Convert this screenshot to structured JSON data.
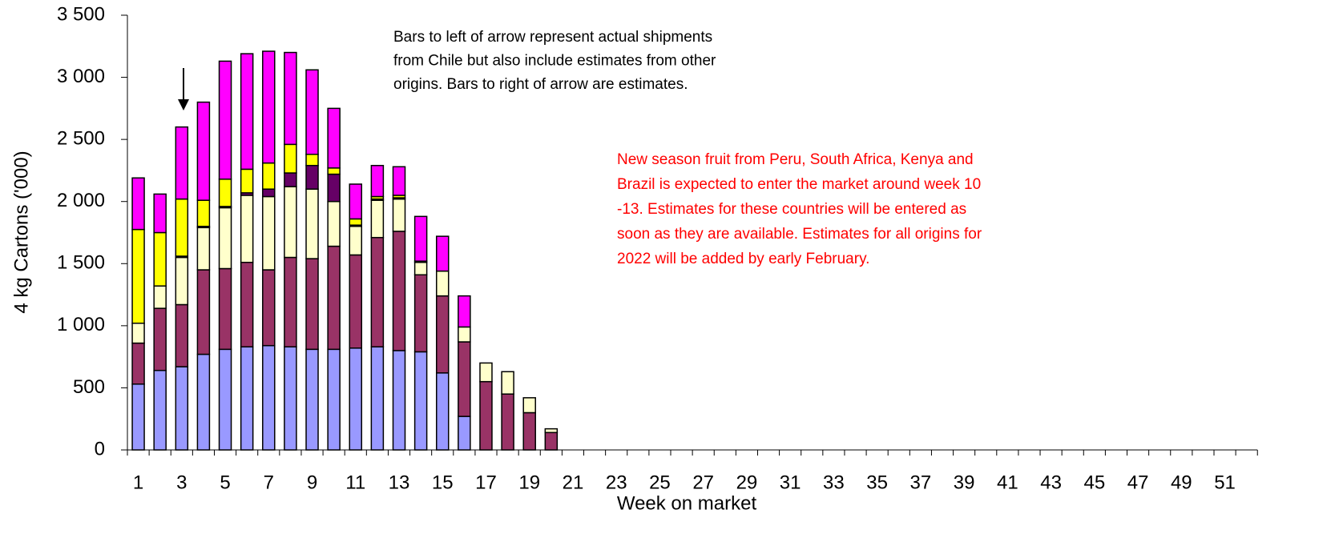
{
  "chart_data": {
    "type": "stacked_bar",
    "x_label": "Week on market",
    "y_label": "4 kg Cartons ('000)",
    "annotations": [
      {
        "lines": [
          "Bars to left of arrow represent actual shipments",
          "from Chile but also include estimates from other",
          "origins. Bars to right of arrow are estimates."
        ]
      },
      {
        "lines": [
          "New season fruit from Peru, South Africa, Kenya and",
          "Brazil is expected to enter the market around week 10",
          "-13. Estimates for these countries will be entered as",
          "soon as they are available. Estimates for all origins for",
          "2022 will be added by early February."
        ]
      }
    ],
    "categories": [
      "1",
      null,
      "3",
      null,
      "5",
      null,
      "7",
      null,
      "9",
      null,
      "11",
      null,
      "13",
      null,
      "15",
      null,
      "17",
      null,
      "19",
      null,
      "21",
      null,
      "23",
      null,
      "25",
      null,
      "27",
      null,
      "29",
      null,
      "31",
      null,
      "33",
      null,
      "35",
      null,
      "37",
      null,
      "39",
      null,
      "41",
      null,
      "43",
      null,
      "45",
      null,
      "47",
      null,
      "49",
      null,
      "51",
      null
    ],
    "series": [
      {
        "color": "#9999ff",
        "values": [
          530,
          640,
          670,
          770,
          810,
          830,
          840,
          830,
          810,
          810,
          820,
          830,
          800,
          790,
          620,
          270,
          0,
          0,
          0,
          0,
          null,
          null,
          null,
          null,
          null,
          null,
          null,
          null,
          null,
          null,
          null,
          null,
          null,
          null,
          null,
          null,
          null,
          null,
          null,
          null,
          null,
          null,
          null,
          null,
          null,
          null,
          null,
          null,
          null,
          null,
          null,
          null
        ]
      },
      {
        "color": "#993366",
        "values": [
          330,
          500,
          500,
          680,
          650,
          680,
          610,
          720,
          730,
          830,
          750,
          880,
          960,
          620,
          620,
          600,
          550,
          450,
          300,
          140,
          null,
          null,
          null,
          null,
          null,
          null,
          null,
          null,
          null,
          null,
          null,
          null,
          null,
          null,
          null,
          null,
          null,
          null,
          null,
          null,
          null,
          null,
          null,
          null,
          null,
          null,
          null,
          null,
          null,
          null,
          null,
          null
        ]
      },
      {
        "color": "#ffffcc",
        "values": [
          160,
          180,
          380,
          340,
          490,
          540,
          590,
          570,
          560,
          360,
          230,
          300,
          260,
          100,
          200,
          120,
          150,
          180,
          120,
          30,
          null,
          null,
          null,
          null,
          null,
          null,
          null,
          null,
          null,
          null,
          null,
          null,
          null,
          null,
          null,
          null,
          null,
          null,
          null,
          null,
          null,
          null,
          null,
          null,
          null,
          null,
          null,
          null,
          null,
          null,
          null,
          null
        ]
      },
      {
        "color": "#660066",
        "values": [
          0,
          0,
          10,
          10,
          10,
          20,
          60,
          110,
          190,
          220,
          10,
          10,
          10,
          0,
          0,
          0,
          0,
          0,
          0,
          0,
          null,
          null,
          null,
          null,
          null,
          null,
          null,
          null,
          null,
          null,
          null,
          null,
          null,
          null,
          null,
          null,
          null,
          null,
          null,
          null,
          null,
          null,
          null,
          null,
          null,
          null,
          null,
          null,
          null,
          null,
          null,
          null
        ]
      },
      {
        "color": "#ffff00",
        "values": [
          755,
          430,
          460,
          210,
          220,
          190,
          210,
          230,
          90,
          50,
          50,
          20,
          20,
          10,
          0,
          0,
          0,
          0,
          0,
          0,
          null,
          null,
          null,
          null,
          null,
          null,
          null,
          null,
          null,
          null,
          null,
          null,
          null,
          null,
          null,
          null,
          null,
          null,
          null,
          null,
          null,
          null,
          null,
          null,
          null,
          null,
          null,
          null,
          null,
          null,
          null,
          null
        ]
      },
      {
        "color": "#ff00ff",
        "values": [
          415,
          310,
          580,
          790,
          950,
          930,
          900,
          740,
          680,
          480,
          280,
          250,
          230,
          360,
          280,
          250,
          0,
          0,
          0,
          0,
          null,
          null,
          null,
          null,
          null,
          null,
          null,
          null,
          null,
          null,
          null,
          null,
          null,
          null,
          null,
          null,
          null,
          null,
          null,
          null,
          null,
          null,
          null,
          null,
          null,
          null,
          null,
          null,
          null,
          null,
          null,
          null
        ]
      }
    ],
    "ylim": [
      0,
      3500
    ],
    "yticks": [
      0,
      500,
      {
        "value": 1000,
        "label": "1 000"
      },
      {
        "value": 1500,
        "label": "1 500"
      },
      {
        "value": 2000,
        "label": "2 000"
      },
      {
        "value": 2500,
        "label": "2 500"
      },
      {
        "value": 3000,
        "label": "3 000"
      },
      {
        "value": 3500,
        "label": "3 500"
      }
    ],
    "grid": false
  }
}
